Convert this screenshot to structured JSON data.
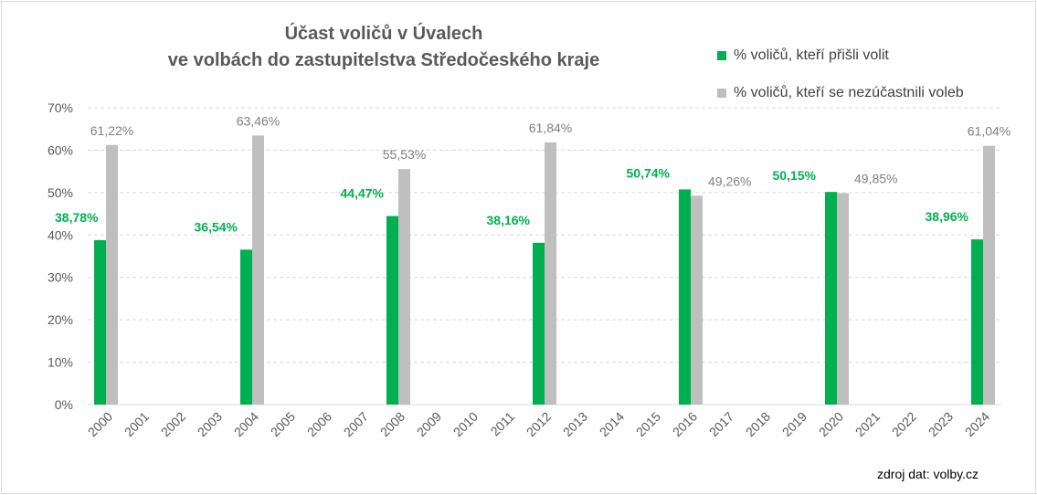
{
  "chart_data": {
    "type": "bar",
    "title": "Účast voličů v Úvalech",
    "subtitle": "ve volbách do zastupitelstva Středočeského kraje",
    "categories": [
      "2000",
      "2001",
      "2002",
      "2003",
      "2004",
      "2005",
      "2006",
      "2007",
      "2008",
      "2009",
      "2010",
      "2011",
      "2012",
      "2013",
      "2014",
      "2015",
      "2016",
      "2017",
      "2018",
      "2019",
      "2020",
      "2021",
      "2022",
      "2023",
      "2024"
    ],
    "series": [
      {
        "name": "% voličů, kteří přišli volit",
        "color": "#00b050",
        "values": [
          38.78,
          null,
          null,
          null,
          36.54,
          null,
          null,
          null,
          44.47,
          null,
          null,
          null,
          38.16,
          null,
          null,
          null,
          50.74,
          null,
          null,
          null,
          50.15,
          null,
          null,
          null,
          38.96
        ],
        "labels": [
          "38,78%",
          null,
          null,
          null,
          "36,54%",
          null,
          null,
          null,
          "44,47%",
          null,
          null,
          null,
          "38,16%",
          null,
          null,
          null,
          "50,74%",
          null,
          null,
          null,
          "50,15%",
          null,
          null,
          null,
          "38,96%"
        ]
      },
      {
        "name": "% voličů, kteří se nezúčastnili voleb",
        "color": "#bfbfbf",
        "values": [
          61.22,
          null,
          null,
          null,
          63.46,
          null,
          null,
          null,
          55.53,
          null,
          null,
          null,
          61.84,
          null,
          null,
          null,
          49.26,
          null,
          null,
          null,
          49.85,
          null,
          null,
          null,
          61.04
        ],
        "labels": [
          "61,22%",
          null,
          null,
          null,
          "63,46%",
          null,
          null,
          null,
          "55,53%",
          null,
          null,
          null,
          "61,84%",
          null,
          null,
          null,
          "49,26%",
          null,
          null,
          null,
          "49,85%",
          null,
          null,
          null,
          "61,04%"
        ]
      }
    ],
    "ylim": [
      0,
      70
    ],
    "yticks": [
      0,
      10,
      20,
      30,
      40,
      50,
      60,
      70
    ],
    "ytick_labels": [
      "0%",
      "10%",
      "20%",
      "30%",
      "40%",
      "50%",
      "60%",
      "70%"
    ],
    "grid": true,
    "legend_position": "top-right",
    "source": "zdroj dat: volby.cz"
  }
}
